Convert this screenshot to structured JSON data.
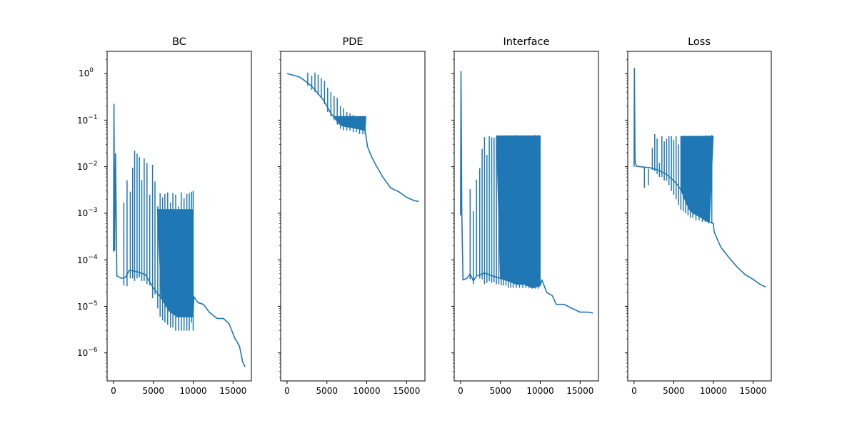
{
  "figure": {
    "title": ""
  },
  "chart_data": [
    {
      "type": "line",
      "title": "BC",
      "xlabel": "",
      "ylabel": "",
      "yscale": "log",
      "xlim": [
        -800,
        17300
      ],
      "ylim": [
        2.5e-07,
        3.0
      ],
      "x_ticks": [
        0,
        5000,
        10000,
        15000
      ],
      "x_tick_labels": [
        "0",
        "5000",
        "10000",
        "15000"
      ],
      "y_ticks": [
        1e-06,
        1e-05,
        0.0001,
        0.001,
        0.01,
        0.1,
        1
      ],
      "y_tick_labels": [
        "10^-6",
        "10^-5",
        "10^-4",
        "10^-3",
        "10^-2",
        "10^-1",
        "10^0"
      ],
      "series": [
        {
          "name": "BC",
          "color": "#1f77b4",
          "trend": [
            [
              0,
              0.00015
            ],
            [
              60,
              0.22
            ],
            [
              140,
              0.00016
            ],
            [
              260,
              0.019
            ],
            [
              420,
              4.5e-05
            ],
            [
              1000,
              4e-05
            ],
            [
              1500,
              4.2e-05
            ],
            [
              2000,
              6e-05
            ],
            [
              3000,
              5.5e-05
            ],
            [
              4000,
              4.8e-05
            ],
            [
              5000,
              2.5e-05
            ],
            [
              6000,
              1.5e-05
            ],
            [
              7000,
              8e-06
            ],
            [
              8000,
              6e-06
            ],
            [
              9000,
              6e-06
            ],
            [
              9950,
              6e-06
            ],
            [
              10100,
              1.6e-05
            ],
            [
              10600,
              1.2e-05
            ],
            [
              11300,
              1.1e-05
            ],
            [
              12000,
              7.5e-06
            ],
            [
              13000,
              5.5e-06
            ],
            [
              13800,
              5.5e-06
            ],
            [
              14500,
              4.2e-06
            ],
            [
              15200,
              2.1e-06
            ],
            [
              15800,
              1.4e-06
            ],
            [
              16200,
              6.5e-07
            ],
            [
              16500,
              5e-07
            ]
          ],
          "spikes": [
            [
              1300,
              0.0017,
              2.8e-05
            ],
            [
              1700,
              0.0051,
              2.7e-05
            ],
            [
              2100,
              0.0029,
              4e-05
            ],
            [
              2400,
              0.0095,
              4e-05
            ],
            [
              2650,
              0.022,
              3.5e-05
            ],
            [
              2950,
              0.019,
              4e-05
            ],
            [
              3250,
              0.016,
              4.2e-05
            ],
            [
              3550,
              0.0052,
              3.5e-05
            ],
            [
              3850,
              0.015,
              3.5e-05
            ],
            [
              4200,
              0.012,
              3e-05
            ],
            [
              4550,
              0.0025,
              2.8e-05
            ],
            [
              4900,
              0.011,
              1.5e-05
            ],
            [
              5200,
              0.0048,
              1.8e-05
            ],
            [
              5550,
              0.0014,
              9e-06
            ],
            [
              5850,
              0.0027,
              6e-06
            ],
            [
              6150,
              0.0022,
              5e-06
            ],
            [
              6450,
              0.0026,
              4.5e-06
            ],
            [
              6800,
              0.0028,
              4e-06
            ],
            [
              7150,
              0.0017,
              3.5e-06
            ],
            [
              7450,
              0.0027,
              3.5e-06
            ],
            [
              7800,
              0.0025,
              3e-06
            ],
            [
              8150,
              0.0014,
              3e-06
            ],
            [
              8500,
              0.0028,
              3e-06
            ],
            [
              8850,
              0.0021,
              3e-06
            ],
            [
              9200,
              0.0026,
              3e-06
            ],
            [
              9500,
              0.0027,
              3e-06
            ],
            [
              9800,
              0.0029,
              4.5e-06
            ],
            [
              10000,
              0.003,
              3e-06
            ]
          ],
          "band": {
            "from": 5500,
            "to": 10000,
            "upper": 0.0012
          }
        }
      ]
    },
    {
      "type": "line",
      "title": "PDE",
      "xlabel": "",
      "ylabel": "",
      "yscale": "log",
      "xlim": [
        -800,
        17300
      ],
      "ylim": [
        2.5e-07,
        3.0
      ],
      "x_ticks": [
        0,
        5000,
        10000,
        15000
      ],
      "x_tick_labels": [
        "0",
        "5000",
        "10000",
        "15000"
      ],
      "series": [
        {
          "name": "PDE",
          "color": "#1f77b4",
          "trend": [
            [
              0,
              1.0
            ],
            [
              500,
              0.95
            ],
            [
              1000,
              0.9
            ],
            [
              1500,
              0.85
            ],
            [
              2000,
              0.75
            ],
            [
              2500,
              0.65
            ],
            [
              3000,
              0.55
            ],
            [
              3500,
              0.45
            ],
            [
              4000,
              0.35
            ],
            [
              4500,
              0.28
            ],
            [
              5000,
              0.2
            ],
            [
              5500,
              0.14
            ],
            [
              6000,
              0.11
            ],
            [
              6500,
              0.085
            ],
            [
              7000,
              0.075
            ],
            [
              8000,
              0.07
            ],
            [
              9000,
              0.065
            ],
            [
              9800,
              0.06
            ],
            [
              10100,
              0.027
            ],
            [
              10500,
              0.018
            ],
            [
              11000,
              0.012
            ],
            [
              12000,
              0.006
            ],
            [
              13000,
              0.0035
            ],
            [
              14000,
              0.0029
            ],
            [
              15000,
              0.0022
            ],
            [
              16000,
              0.00185
            ],
            [
              16500,
              0.0018
            ]
          ],
          "spikes": [
            [
              2600,
              1.05,
              0.55
            ],
            [
              3100,
              0.9,
              0.45
            ],
            [
              3500,
              1.05,
              0.4
            ],
            [
              3900,
              0.95,
              0.35
            ],
            [
              4300,
              0.8,
              0.3
            ],
            [
              4700,
              0.7,
              0.22
            ],
            [
              5100,
              0.5,
              0.15
            ],
            [
              5500,
              0.4,
              0.12
            ],
            [
              5900,
              0.33,
              0.1
            ],
            [
              6300,
              0.3,
              0.08
            ],
            [
              6700,
              0.2,
              0.065
            ],
            [
              7100,
              0.18,
              0.06
            ],
            [
              7500,
              0.15,
              0.06
            ],
            [
              7900,
              0.14,
              0.06
            ],
            [
              8300,
              0.13,
              0.055
            ],
            [
              8700,
              0.12,
              0.055
            ],
            [
              9100,
              0.12,
              0.05
            ],
            [
              9500,
              0.12,
              0.05
            ],
            [
              9800,
              0.12,
              0.05
            ]
          ],
          "band": {
            "from": 6000,
            "to": 9900,
            "upper": 0.12
          }
        }
      ]
    },
    {
      "type": "line",
      "title": "Interface",
      "xlabel": "",
      "ylabel": "",
      "yscale": "log",
      "xlim": [
        -800,
        17300
      ],
      "ylim": [
        2.5e-07,
        3.0
      ],
      "x_ticks": [
        0,
        5000,
        10000,
        15000
      ],
      "x_tick_labels": [
        "0",
        "5000",
        "10000",
        "15000"
      ],
      "series": [
        {
          "name": "Interface",
          "color": "#1f77b4",
          "trend": [
            [
              0,
              0.0009
            ],
            [
              50,
              1.1
            ],
            [
              150,
              0.0011
            ],
            [
              300,
              3.7e-05
            ],
            [
              800,
              4e-05
            ],
            [
              1200,
              5e-05
            ],
            [
              1600,
              3.5e-05
            ],
            [
              2000,
              4.5e-05
            ],
            [
              3000,
              5.2e-05
            ],
            [
              4000,
              4.5e-05
            ],
            [
              5000,
              4e-05
            ],
            [
              6000,
              3.5e-05
            ],
            [
              7000,
              3e-05
            ],
            [
              8000,
              3e-05
            ],
            [
              9000,
              2.5e-05
            ],
            [
              10000,
              2.8e-05
            ],
            [
              10200,
              3.7e-05
            ],
            [
              10800,
              2e-05
            ],
            [
              11500,
              1.7e-05
            ],
            [
              12000,
              1.1e-05
            ],
            [
              13000,
              1.1e-05
            ],
            [
              14000,
              9e-06
            ],
            [
              15000,
              7.5e-06
            ],
            [
              16000,
              7.5e-06
            ],
            [
              16600,
              7.2e-06
            ]
          ],
          "spikes": [
            [
              1200,
              0.0033,
              3.8e-05
            ],
            [
              1600,
              0.0011,
              3e-05
            ],
            [
              2000,
              0.0053,
              4.5e-05
            ],
            [
              2400,
              0.0093,
              4e-05
            ],
            [
              2700,
              0.024,
              3.8e-05
            ],
            [
              3000,
              0.043,
              3e-05
            ],
            [
              3300,
              0.018,
              3.2e-05
            ],
            [
              3600,
              0.045,
              3.5e-05
            ],
            [
              3900,
              0.043,
              3.2e-05
            ],
            [
              4200,
              0.042,
              3.3e-05
            ],
            [
              4500,
              0.043,
              3e-05
            ],
            [
              4800,
              0.022,
              3e-05
            ],
            [
              5100,
              0.045,
              2.8e-05
            ],
            [
              5400,
              0.043,
              2.8e-05
            ],
            [
              5700,
              0.043,
              2.8e-05
            ],
            [
              6000,
              0.044,
              2.5e-05
            ],
            [
              6300,
              0.047,
              2.5e-05
            ],
            [
              6600,
              0.045,
              2.5e-05
            ],
            [
              7000,
              0.048,
              2.5e-05
            ],
            [
              7400,
              0.046,
              2.5e-05
            ],
            [
              7800,
              0.047,
              2.5e-05
            ],
            [
              8200,
              0.046,
              2.5e-05
            ],
            [
              8600,
              0.047,
              2.5e-05
            ],
            [
              9000,
              0.047,
              2.4e-05
            ],
            [
              9400,
              0.048,
              2.4e-05
            ],
            [
              9800,
              0.048,
              2.4e-05
            ]
          ],
          "band": {
            "from": 4500,
            "to": 10000,
            "upper": 0.046
          }
        }
      ]
    },
    {
      "type": "line",
      "title": "Loss",
      "xlabel": "",
      "ylabel": "",
      "yscale": "log",
      "xlim": [
        -800,
        17300
      ],
      "ylim": [
        2.5e-07,
        3.0
      ],
      "x_ticks": [
        0,
        5000,
        10000,
        15000
      ],
      "x_tick_labels": [
        "0",
        "5000",
        "10000",
        "15000"
      ],
      "series": [
        {
          "name": "Loss",
          "color": "#1f77b4",
          "trend": [
            [
              0,
              0.01
            ],
            [
              40,
              1.3
            ],
            [
              120,
              0.013
            ],
            [
              300,
              0.0102
            ],
            [
              1000,
              0.0099
            ],
            [
              2000,
              0.0095
            ],
            [
              2500,
              0.009
            ],
            [
              3000,
              0.0085
            ],
            [
              4000,
              0.007
            ],
            [
              5000,
              0.005
            ],
            [
              5500,
              0.004
            ],
            [
              6000,
              0.003
            ],
            [
              6500,
              0.0018
            ],
            [
              7000,
              0.0012
            ],
            [
              7500,
              0.001
            ],
            [
              8000,
              0.0009
            ],
            [
              8500,
              0.0008
            ],
            [
              9000,
              0.0007
            ],
            [
              9500,
              0.00065
            ],
            [
              10000,
              0.0006
            ],
            [
              10100,
              0.0004
            ],
            [
              10600,
              0.00025
            ],
            [
              11000,
              0.00018
            ],
            [
              12000,
              0.00011
            ],
            [
              13000,
              7e-05
            ],
            [
              14000,
              4.8e-05
            ],
            [
              15000,
              3.8e-05
            ],
            [
              16000,
              2.9e-05
            ],
            [
              16600,
              2.6e-05
            ]
          ],
          "spikes": [
            [
              1300,
              0.0035,
              0.0095
            ],
            [
              1800,
              0.004,
              0.009
            ],
            [
              2300,
              0.025,
              0.0085
            ],
            [
              2600,
              0.05,
              0.008
            ],
            [
              2900,
              0.04,
              0.007
            ],
            [
              3200,
              0.012,
              0.006
            ],
            [
              3500,
              0.045,
              0.006
            ],
            [
              3800,
              0.035,
              0.005
            ],
            [
              4100,
              0.04,
              0.005
            ],
            [
              4400,
              0.045,
              0.004
            ],
            [
              4700,
              0.045,
              0.003
            ],
            [
              5000,
              0.038,
              0.0025
            ],
            [
              5300,
              0.045,
              0.002
            ],
            [
              5600,
              0.03,
              0.0015
            ],
            [
              5900,
              0.045,
              0.0012
            ],
            [
              6200,
              0.04,
              0.0011
            ],
            [
              6500,
              0.045,
              0.001
            ],
            [
              6800,
              0.04,
              0.0009
            ],
            [
              7100,
              0.045,
              0.0008
            ],
            [
              7400,
              0.04,
              0.0008
            ],
            [
              7800,
              0.045,
              0.0007
            ],
            [
              8200,
              0.045,
              0.0007
            ],
            [
              8600,
              0.046,
              0.00065
            ],
            [
              9000,
              0.047,
              0.00065
            ],
            [
              9400,
              0.047,
              0.0006
            ],
            [
              9800,
              0.048,
              0.0006
            ]
          ],
          "band": {
            "from": 6000,
            "to": 9990,
            "upper": 0.045
          }
        }
      ]
    }
  ]
}
